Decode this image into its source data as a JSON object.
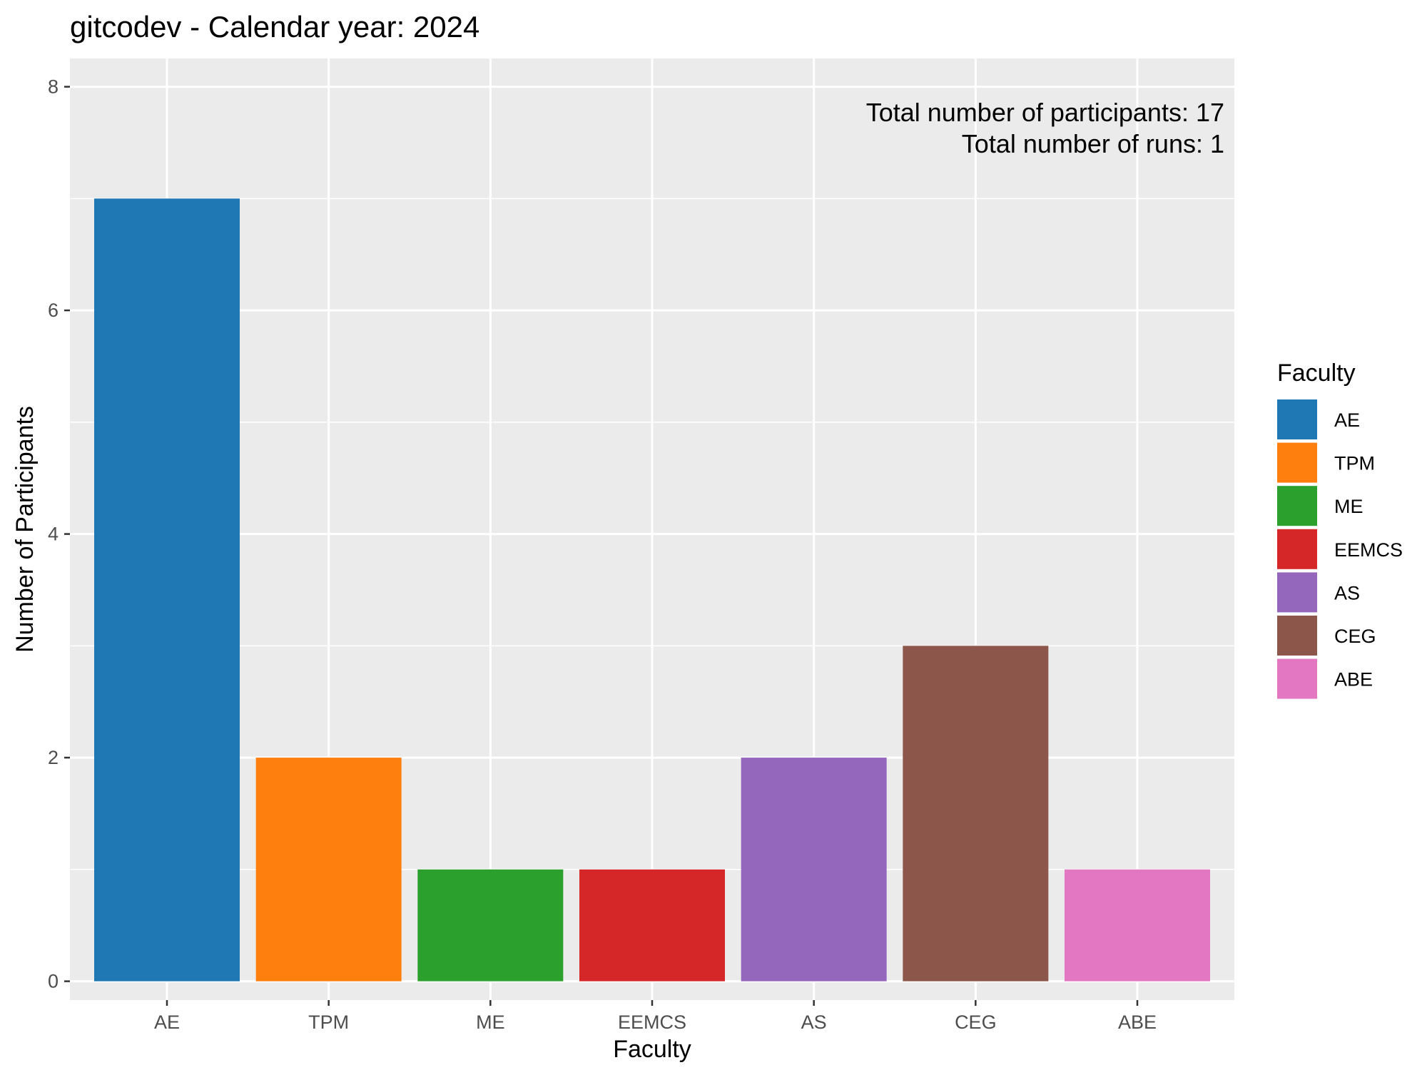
{
  "chart_data": {
    "type": "bar",
    "title": "gitcodev - Calendar year: 2024",
    "xlabel": "Faculty",
    "ylabel": "Number of Participants",
    "categories": [
      "AE",
      "TPM",
      "ME",
      "EEMCS",
      "AS",
      "CEG",
      "ABE"
    ],
    "values": [
      7,
      2,
      1,
      1,
      2,
      3,
      1
    ],
    "colors": [
      "#1f77b4",
      "#ff7f0e",
      "#2ca02c",
      "#d62728",
      "#9467bd",
      "#8c564b",
      "#e377c2"
    ],
    "ylim": [
      0,
      8
    ],
    "yticks": [
      0,
      2,
      4,
      6,
      8
    ],
    "grid": true,
    "legend": {
      "title": "Faculty",
      "position": "right",
      "entries": [
        "AE",
        "TPM",
        "ME",
        "EEMCS",
        "AS",
        "CEG",
        "ABE"
      ]
    },
    "annotations": [
      "Total number of participants: 17",
      "Total number of runs: 1"
    ]
  }
}
